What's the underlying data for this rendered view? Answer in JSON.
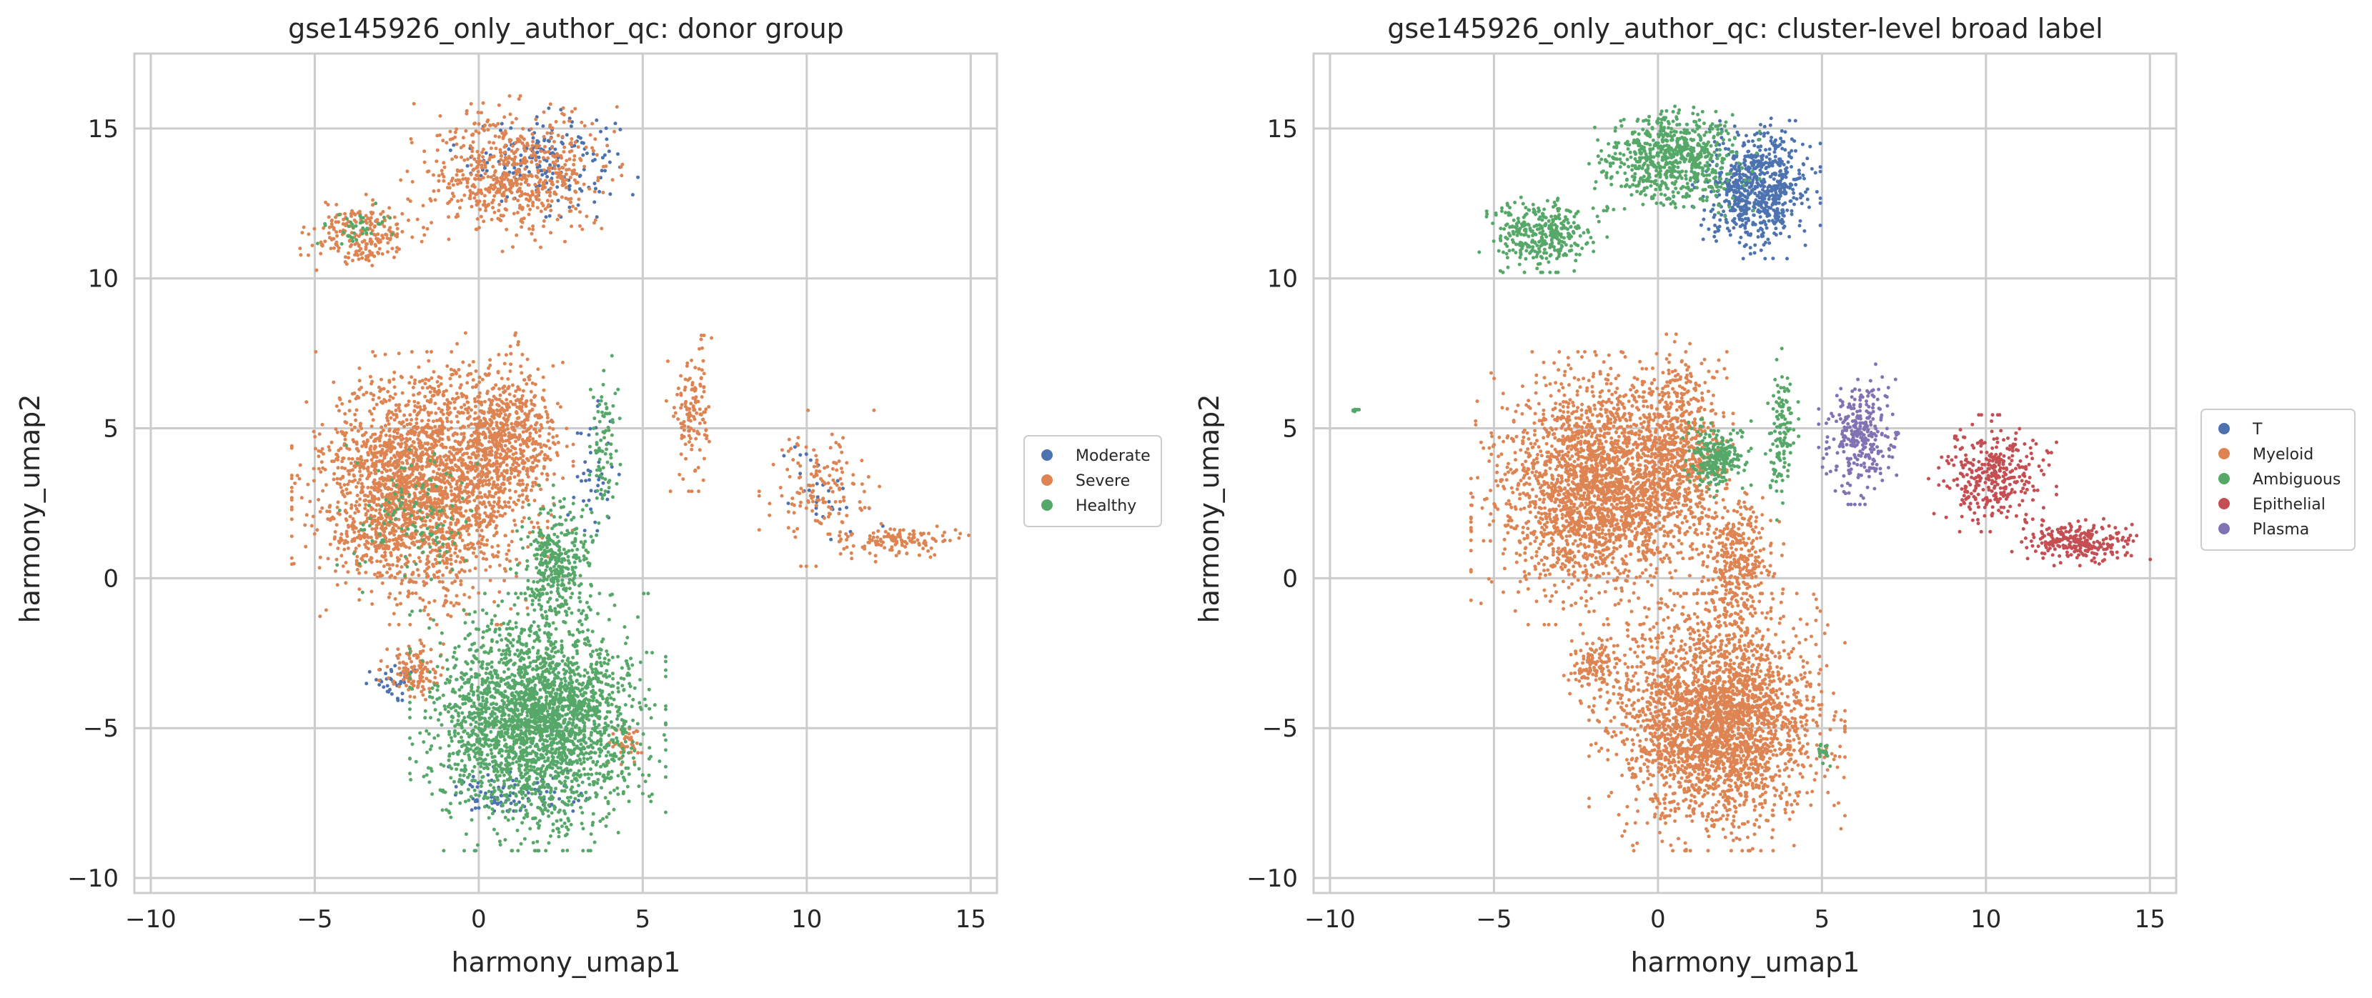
{
  "chart_data": [
    {
      "type": "scatter",
      "title": "gse145926_only_author_qc: donor group",
      "xlabel": "harmony_umap1",
      "ylabel": "harmony_umap2",
      "xlim": [
        -10.5,
        15.8
      ],
      "ylim": [
        -10.5,
        17.5
      ],
      "xticks": [
        -10,
        -5,
        0,
        5,
        10,
        15
      ],
      "yticks": [
        -10,
        -5,
        0,
        5,
        10,
        15
      ],
      "xtick_labels": [
        "−10",
        "−5",
        "0",
        "5",
        "10",
        "15"
      ],
      "ytick_labels": [
        "−10",
        "−5",
        "0",
        "5",
        "10",
        "15"
      ],
      "grid": true,
      "legend_position": "right",
      "series": [
        {
          "name": "Moderate",
          "color": "#4c72b0",
          "regions": [
            {
              "cx": 2.0,
              "cy": 14.0,
              "rx": 2.2,
              "ry": 1.5,
              "n": 180
            },
            {
              "cx": -2.5,
              "cy": -3.5,
              "rx": 0.9,
              "ry": 0.5,
              "n": 40
            },
            {
              "cx": 1.0,
              "cy": -7.2,
              "rx": 2.0,
              "ry": 0.7,
              "n": 90
            },
            {
              "cx": 10.5,
              "cy": 3.0,
              "rx": 1.4,
              "ry": 1.4,
              "n": 30
            },
            {
              "cx": 3.5,
              "cy": 3.5,
              "rx": 0.6,
              "ry": 2.2,
              "n": 40
            }
          ]
        },
        {
          "name": "Severe",
          "color": "#dd8452",
          "regions": [
            {
              "cx": -1.8,
              "cy": 3.0,
              "rx": 3.0,
              "ry": 3.5,
              "n": 2300
            },
            {
              "cx": 0.8,
              "cy": 4.8,
              "rx": 1.6,
              "ry": 2.6,
              "n": 600
            },
            {
              "cx": 1.0,
              "cy": 13.5,
              "rx": 2.6,
              "ry": 2.0,
              "n": 650
            },
            {
              "cx": -3.5,
              "cy": 11.5,
              "rx": 1.5,
              "ry": 1.0,
              "n": 220
            },
            {
              "cx": 10.5,
              "cy": 3.0,
              "rx": 1.5,
              "ry": 2.0,
              "n": 150
            },
            {
              "cx": 12.8,
              "cy": 1.2,
              "rx": 1.7,
              "ry": 0.5,
              "n": 120
            },
            {
              "cx": 6.5,
              "cy": 5.5,
              "rx": 0.6,
              "ry": 2.0,
              "n": 130
            },
            {
              "cx": -2.0,
              "cy": -3.0,
              "rx": 0.8,
              "ry": 0.9,
              "n": 120
            },
            {
              "cx": 4.5,
              "cy": -5.5,
              "rx": 0.5,
              "ry": 0.7,
              "n": 40
            }
          ]
        },
        {
          "name": "Healthy",
          "color": "#55a868",
          "regions": [
            {
              "cx": 1.8,
              "cy": -4.8,
              "rx": 3.0,
              "ry": 3.3,
              "n": 2600
            },
            {
              "cx": 2.4,
              "cy": 0.5,
              "rx": 1.1,
              "ry": 2.0,
              "n": 350
            },
            {
              "cx": 3.8,
              "cy": 4.5,
              "rx": 0.4,
              "ry": 2.5,
              "n": 80
            },
            {
              "cx": -2.0,
              "cy": 2.0,
              "rx": 2.0,
              "ry": 2.0,
              "n": 120
            },
            {
              "cx": -3.8,
              "cy": 11.8,
              "rx": 1.0,
              "ry": 0.6,
              "n": 40
            }
          ]
        }
      ]
    },
    {
      "type": "scatter",
      "title": "gse145926_only_author_qc: cluster-level broad label",
      "xlabel": "harmony_umap1",
      "ylabel": "harmony_umap2",
      "xlim": [
        -10.5,
        15.8
      ],
      "ylim": [
        -10.5,
        17.5
      ],
      "xticks": [
        -10,
        -5,
        0,
        5,
        10,
        15
      ],
      "yticks": [
        -10,
        -5,
        0,
        5,
        10,
        15
      ],
      "xtick_labels": [
        "−10",
        "−5",
        "0",
        "5",
        "10",
        "15"
      ],
      "ytick_labels": [
        "−10",
        "−5",
        "0",
        "5",
        "10",
        "15"
      ],
      "grid": true,
      "legend_position": "right",
      "series": [
        {
          "name": "T",
          "color": "#4c72b0",
          "regions": [
            {
              "cx": 3.0,
              "cy": 13.0,
              "rx": 1.5,
              "ry": 1.8,
              "n": 700
            }
          ]
        },
        {
          "name": "Myeloid",
          "color": "#dd8452",
          "regions": [
            {
              "cx": -1.8,
              "cy": 3.0,
              "rx": 3.0,
              "ry": 3.5,
              "n": 2400
            },
            {
              "cx": 0.6,
              "cy": 4.5,
              "rx": 1.3,
              "ry": 2.8,
              "n": 500
            },
            {
              "cx": 1.8,
              "cy": -4.8,
              "rx": 3.0,
              "ry": 3.3,
              "n": 2700
            },
            {
              "cx": 2.4,
              "cy": 0.5,
              "rx": 1.1,
              "ry": 2.0,
              "n": 350
            },
            {
              "cx": -2.0,
              "cy": -3.0,
              "rx": 0.8,
              "ry": 0.9,
              "n": 120
            }
          ]
        },
        {
          "name": "Ambiguous",
          "color": "#55a868",
          "regions": [
            {
              "cx": 0.5,
              "cy": 14.0,
              "rx": 2.0,
              "ry": 1.5,
              "n": 700
            },
            {
              "cx": -3.5,
              "cy": 11.5,
              "rx": 1.5,
              "ry": 1.0,
              "n": 350
            },
            {
              "cx": 1.8,
              "cy": 4.0,
              "rx": 0.8,
              "ry": 1.0,
              "n": 250
            },
            {
              "cx": 3.8,
              "cy": 4.8,
              "rx": 0.4,
              "ry": 2.2,
              "n": 120
            },
            {
              "cx": 5.0,
              "cy": -5.8,
              "rx": 0.2,
              "ry": 0.4,
              "n": 20
            },
            {
              "cx": -9.2,
              "cy": 5.6,
              "rx": 0.1,
              "ry": 0.1,
              "n": 8
            }
          ]
        },
        {
          "name": "Epithelial",
          "color": "#c44e52",
          "regions": [
            {
              "cx": 10.2,
              "cy": 3.5,
              "rx": 1.5,
              "ry": 1.5,
              "n": 350
            },
            {
              "cx": 12.8,
              "cy": 1.2,
              "rx": 1.7,
              "ry": 0.6,
              "n": 260
            }
          ]
        },
        {
          "name": "Plasma",
          "color": "#8172b3",
          "regions": [
            {
              "cx": 6.2,
              "cy": 4.8,
              "rx": 1.0,
              "ry": 1.8,
              "n": 300
            }
          ]
        }
      ]
    }
  ]
}
